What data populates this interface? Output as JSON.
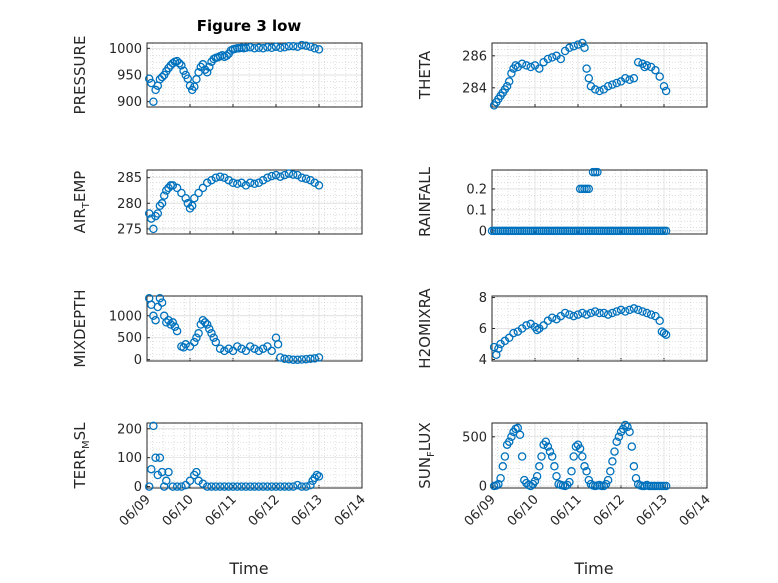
{
  "figure_title": "Figure 3 low",
  "colors": {
    "marker": "#0072BD",
    "axis": "#262626"
  },
  "chart_data": [
    {
      "type": "scatter",
      "ylabel": "PRESSURE",
      "ylim": [
        890,
        1010
      ],
      "yticks": [
        900,
        950,
        1000
      ],
      "ytick_labels": [
        "900",
        "950",
        "1000"
      ],
      "xlim": [
        0,
        5
      ],
      "xticks": [
        0,
        1,
        2,
        3,
        4,
        5
      ],
      "xtick_labels": [
        "06/09",
        "06/10",
        "06/11",
        "06/12",
        "06/13",
        "06/14"
      ],
      "grid": true,
      "minor_grid": true,
      "x": [
        0.05,
        0.1,
        0.15,
        0.2,
        0.25,
        0.3,
        0.35,
        0.4,
        0.45,
        0.5,
        0.55,
        0.6,
        0.65,
        0.7,
        0.75,
        0.8,
        0.85,
        0.9,
        0.95,
        1.0,
        1.05,
        1.1,
        1.15,
        1.2,
        1.25,
        1.3,
        1.35,
        1.4,
        1.45,
        1.5,
        1.55,
        1.6,
        1.65,
        1.7,
        1.75,
        1.8,
        1.85,
        1.9,
        1.95,
        2.0,
        2.05,
        2.1,
        2.15,
        2.2,
        2.25,
        2.3,
        2.4,
        2.5,
        2.6,
        2.7,
        2.8,
        2.9,
        3.0,
        3.1,
        3.2,
        3.3,
        3.4,
        3.5,
        3.6,
        3.7,
        3.8,
        3.9,
        4.0
      ],
      "y": [
        943,
        935,
        900,
        922,
        930,
        942,
        946,
        950,
        957,
        963,
        968,
        972,
        975,
        976,
        972,
        968,
        958,
        950,
        943,
        930,
        922,
        928,
        942,
        955,
        965,
        970,
        960,
        955,
        965,
        975,
        980,
        982,
        983,
        985,
        987,
        984,
        986,
        990,
        996,
        998,
        999,
        1000,
        1000,
        1001,
        1000,
        1001,
        1002,
        1000,
        1001,
        1000,
        1002,
        1001,
        1003,
        1001,
        1002,
        1004,
        1004,
        1003,
        1006,
        1005,
        1003,
        1000,
        998
      ]
    },
    {
      "type": "scatter",
      "ylabel": "THETA",
      "ylim": [
        282.8,
        286.8
      ],
      "yticks": [
        284,
        286
      ],
      "ytick_labels": [
        "284",
        "286"
      ],
      "xlim": [
        0,
        5
      ],
      "xticks": [
        0,
        1,
        2,
        3,
        4,
        5
      ],
      "xtick_labels": [
        "06/09",
        "06/10",
        "06/11",
        "06/12",
        "06/13",
        "06/14"
      ],
      "grid": true,
      "minor_grid": true,
      "x": [
        0.05,
        0.1,
        0.15,
        0.2,
        0.25,
        0.3,
        0.35,
        0.4,
        0.45,
        0.5,
        0.55,
        0.6,
        0.7,
        0.8,
        0.9,
        1.0,
        1.1,
        1.2,
        1.3,
        1.4,
        1.5,
        1.6,
        1.7,
        1.8,
        1.9,
        2.0,
        2.1,
        2.15,
        2.2,
        2.25,
        2.3,
        2.4,
        2.5,
        2.6,
        2.7,
        2.8,
        2.9,
        3.0,
        3.1,
        3.2,
        3.3,
        3.4,
        3.5,
        3.55,
        3.6,
        3.7,
        3.8,
        3.9,
        4.0,
        4.05
      ],
      "y": [
        282.9,
        283.1,
        283.3,
        283.5,
        283.7,
        283.9,
        284.1,
        284.4,
        284.9,
        285.2,
        285.4,
        285.3,
        285.5,
        285.4,
        285.3,
        285.4,
        285.2,
        285.6,
        285.8,
        285.9,
        286.0,
        285.8,
        286.3,
        286.5,
        286.6,
        286.7,
        286.8,
        286.5,
        285.2,
        284.6,
        284.1,
        283.9,
        283.8,
        283.9,
        284.1,
        284.2,
        284.3,
        284.4,
        284.6,
        284.5,
        284.6,
        285.6,
        285.5,
        285.3,
        285.4,
        285.3,
        285.1,
        284.7,
        284.1,
        283.8
      ]
    },
    {
      "type": "scatter",
      "ylabel": "AIR_TEMP",
      "ylim": [
        274,
        286.5
      ],
      "yticks": [
        275,
        280,
        285
      ],
      "ytick_labels": [
        "275",
        "280",
        "285"
      ],
      "xlim": [
        0,
        5
      ],
      "xticks": [
        0,
        1,
        2,
        3,
        4,
        5
      ],
      "xtick_labels": [
        "06/09",
        "06/10",
        "06/11",
        "06/12",
        "06/13",
        "06/14"
      ],
      "grid": true,
      "minor_grid": true,
      "x": [
        0.05,
        0.1,
        0.15,
        0.2,
        0.25,
        0.3,
        0.35,
        0.4,
        0.45,
        0.5,
        0.55,
        0.6,
        0.7,
        0.8,
        0.9,
        0.95,
        1.0,
        1.05,
        1.1,
        1.2,
        1.3,
        1.4,
        1.5,
        1.6,
        1.7,
        1.8,
        1.9,
        2.0,
        2.1,
        2.2,
        2.3,
        2.4,
        2.5,
        2.6,
        2.7,
        2.8,
        2.9,
        3.0,
        3.1,
        3.2,
        3.3,
        3.4,
        3.5,
        3.6,
        3.7,
        3.8,
        3.9,
        4.0
      ],
      "y": [
        278,
        277,
        275,
        277.5,
        278,
        279.5,
        280,
        281.5,
        282.5,
        283,
        283.5,
        283.5,
        283,
        282,
        281,
        280,
        279,
        279.5,
        281,
        282,
        283,
        284,
        284.5,
        285,
        285.2,
        285,
        284.5,
        284,
        283.8,
        284,
        283.5,
        284,
        283.8,
        284,
        284.5,
        285,
        285.3,
        285.5,
        285.2,
        285.5,
        285.8,
        285.6,
        285.5,
        285,
        284.8,
        284.5,
        284,
        283.5
      ]
    },
    {
      "type": "scatter",
      "ylabel": "RAINFALL",
      "ylim": [
        -0.015,
        0.29
      ],
      "yticks": [
        0,
        0.1,
        0.2
      ],
      "ytick_labels": [
        "0",
        "0.1",
        "0.2"
      ],
      "xlim": [
        0,
        5
      ],
      "xticks": [
        0,
        1,
        2,
        3,
        4,
        5
      ],
      "xtick_labels": [
        "06/09",
        "06/10",
        "06/11",
        "06/12",
        "06/13",
        "06/14"
      ],
      "grid": true,
      "minor_grid": true,
      "x": [
        0.0,
        0.05,
        0.1,
        0.15,
        0.2,
        0.25,
        0.3,
        0.35,
        0.4,
        0.45,
        0.5,
        0.55,
        0.6,
        0.65,
        0.7,
        0.75,
        0.8,
        0.85,
        0.9,
        0.95,
        1.0,
        1.05,
        1.1,
        1.15,
        1.2,
        1.25,
        1.3,
        1.35,
        1.4,
        1.45,
        1.5,
        1.55,
        1.6,
        1.65,
        1.7,
        1.75,
        1.8,
        1.85,
        1.9,
        1.95,
        2.0,
        2.05,
        2.1,
        2.15,
        2.2,
        2.25,
        2.3,
        2.35,
        2.4,
        2.45,
        2.5,
        2.55,
        2.6,
        2.65,
        2.7,
        2.75,
        2.8,
        2.85,
        2.9,
        2.95,
        3.0,
        3.05,
        3.1,
        3.15,
        3.2,
        3.25,
        3.3,
        3.35,
        3.4,
        3.45,
        3.5,
        3.55,
        3.6,
        3.65,
        3.7,
        3.75,
        3.8,
        3.85,
        3.9,
        3.95,
        4.0,
        4.05,
        2.05,
        2.1,
        2.15,
        2.2,
        2.25,
        2.35,
        2.4,
        2.45
      ],
      "y": [
        0,
        0,
        0,
        0,
        0,
        0,
        0,
        0,
        0,
        0,
        0,
        0,
        0,
        0,
        0,
        0,
        0,
        0,
        0,
        0,
        0,
        0,
        0,
        0,
        0,
        0,
        0,
        0,
        0,
        0,
        0,
        0,
        0,
        0,
        0,
        0,
        0,
        0,
        0,
        0,
        0,
        0,
        0,
        0,
        0,
        0,
        0,
        0,
        0,
        0,
        0,
        0,
        0,
        0,
        0,
        0,
        0,
        0,
        0,
        0,
        0,
        0,
        0,
        0,
        0,
        0,
        0,
        0,
        0,
        0,
        0,
        0,
        0,
        0,
        0,
        0,
        0,
        0,
        0,
        0,
        0,
        0,
        0.2,
        0.2,
        0.2,
        0.2,
        0.2,
        0.28,
        0.28,
        0.28
      ]
    },
    {
      "type": "scatter",
      "ylabel": "MIXDEPTH",
      "ylim": [
        -30,
        1450
      ],
      "yticks": [
        0,
        500,
        1000
      ],
      "ytick_labels": [
        "0",
        "500",
        "1000"
      ],
      "xlim": [
        0,
        5
      ],
      "xticks": [
        0,
        1,
        2,
        3,
        4,
        5
      ],
      "xtick_labels": [
        "06/09",
        "06/10",
        "06/11",
        "06/12",
        "06/13",
        "06/14"
      ],
      "grid": true,
      "minor_grid": true,
      "x": [
        0.05,
        0.1,
        0.15,
        0.2,
        0.25,
        0.3,
        0.35,
        0.4,
        0.45,
        0.5,
        0.55,
        0.6,
        0.65,
        0.7,
        0.8,
        0.85,
        0.9,
        1.0,
        1.1,
        1.15,
        1.2,
        1.25,
        1.3,
        1.35,
        1.4,
        1.45,
        1.5,
        1.55,
        1.6,
        1.7,
        1.8,
        1.9,
        2.0,
        2.1,
        2.2,
        2.3,
        2.4,
        2.5,
        2.6,
        2.7,
        2.8,
        2.9,
        3.0,
        3.05,
        3.1,
        3.2,
        3.3,
        3.4,
        3.5,
        3.6,
        3.7,
        3.8,
        3.9,
        4.0
      ],
      "y": [
        1400,
        1250,
        1000,
        900,
        1200,
        1400,
        1300,
        1000,
        850,
        900,
        800,
        850,
        750,
        650,
        300,
        280,
        350,
        300,
        400,
        500,
        600,
        800,
        900,
        850,
        800,
        700,
        600,
        500,
        400,
        250,
        200,
        250,
        200,
        300,
        250,
        200,
        300,
        250,
        200,
        250,
        300,
        200,
        500,
        350,
        50,
        20,
        10,
        0,
        0,
        5,
        10,
        20,
        30,
        50
      ]
    },
    {
      "type": "scatter",
      "ylabel": "H2OMIXRA",
      "ylim": [
        3.9,
        8.1
      ],
      "yticks": [
        4,
        6,
        8
      ],
      "ytick_labels": [
        "4",
        "6",
        "8"
      ],
      "xlim": [
        0,
        5
      ],
      "xticks": [
        0,
        1,
        2,
        3,
        4,
        5
      ],
      "xtick_labels": [
        "06/09",
        "06/10",
        "06/11",
        "06/12",
        "06/13",
        "06/14"
      ],
      "grid": true,
      "minor_grid": true,
      "x": [
        0.05,
        0.1,
        0.15,
        0.2,
        0.3,
        0.4,
        0.5,
        0.6,
        0.7,
        0.8,
        0.9,
        1.0,
        1.05,
        1.1,
        1.2,
        1.3,
        1.4,
        1.5,
        1.6,
        1.7,
        1.8,
        1.9,
        2.0,
        2.1,
        2.2,
        2.3,
        2.4,
        2.5,
        2.6,
        2.7,
        2.8,
        2.9,
        3.0,
        3.1,
        3.2,
        3.3,
        3.4,
        3.5,
        3.6,
        3.7,
        3.8,
        3.9,
        3.95,
        4.0,
        4.05
      ],
      "y": [
        4.8,
        4.3,
        4.7,
        5.0,
        5.2,
        5.4,
        5.7,
        5.8,
        6.0,
        6.2,
        6.3,
        6.1,
        5.9,
        6.0,
        6.2,
        6.5,
        6.7,
        6.6,
        6.8,
        7.0,
        6.9,
        6.8,
        6.9,
        7.0,
        6.9,
        7.0,
        7.1,
        7.0,
        7.0,
        6.9,
        7.0,
        7.1,
        7.2,
        7.1,
        7.2,
        7.3,
        7.2,
        7.1,
        7.0,
        6.9,
        6.8,
        6.5,
        5.8,
        5.7,
        5.6
      ]
    },
    {
      "type": "scatter",
      "ylabel": "TERR_MSL",
      "ylim": [
        -5,
        220
      ],
      "yticks": [
        0,
        100,
        200
      ],
      "ytick_labels": [
        "0",
        "100",
        "200"
      ],
      "xlim": [
        0,
        5
      ],
      "xticks": [
        0,
        1,
        2,
        3,
        4,
        5
      ],
      "xtick_labels": [
        "06/09",
        "06/10",
        "06/11",
        "06/12",
        "06/13",
        "06/14"
      ],
      "grid": true,
      "minor_grid": true,
      "x": [
        0.05,
        0.1,
        0.15,
        0.2,
        0.25,
        0.3,
        0.35,
        0.4,
        0.45,
        0.5,
        0.6,
        0.7,
        0.8,
        0.9,
        1.0,
        1.1,
        1.15,
        1.2,
        1.3,
        1.4,
        1.5,
        1.6,
        1.7,
        1.8,
        1.9,
        2.0,
        2.1,
        2.2,
        2.3,
        2.4,
        2.5,
        2.6,
        2.7,
        2.8,
        2.9,
        3.0,
        3.1,
        3.2,
        3.3,
        3.4,
        3.5,
        3.6,
        3.7,
        3.8,
        3.85,
        3.9,
        3.95,
        4.0
      ],
      "y": [
        0,
        60,
        210,
        100,
        40,
        100,
        50,
        0,
        20,
        50,
        0,
        0,
        0,
        5,
        20,
        40,
        50,
        20,
        10,
        0,
        0,
        0,
        0,
        0,
        0,
        0,
        0,
        0,
        0,
        0,
        0,
        0,
        0,
        0,
        0,
        0,
        0,
        0,
        0,
        0,
        5,
        0,
        0,
        5,
        20,
        30,
        40,
        35
      ]
    },
    {
      "type": "scatter",
      "ylabel": "SUN_FLUX",
      "ylim": [
        -20,
        640
      ],
      "yticks": [
        0,
        500
      ],
      "ytick_labels": [
        "0",
        "500"
      ],
      "xlim": [
        0,
        5
      ],
      "xticks": [
        0,
        1,
        2,
        3,
        4,
        5
      ],
      "xtick_labels": [
        "06/09",
        "06/10",
        "06/11",
        "06/12",
        "06/13",
        "06/14"
      ],
      "grid": true,
      "minor_grid": true,
      "x": [
        0.05,
        0.1,
        0.15,
        0.2,
        0.25,
        0.3,
        0.35,
        0.4,
        0.45,
        0.5,
        0.55,
        0.6,
        0.65,
        0.7,
        0.75,
        0.8,
        0.85,
        0.9,
        0.95,
        1.0,
        1.05,
        1.1,
        1.15,
        1.2,
        1.25,
        1.3,
        1.35,
        1.4,
        1.45,
        1.5,
        1.55,
        1.6,
        1.65,
        1.7,
        1.75,
        1.8,
        1.85,
        1.9,
        1.95,
        2.0,
        2.05,
        2.1,
        2.15,
        2.2,
        2.25,
        2.3,
        2.35,
        2.4,
        2.45,
        2.5,
        2.55,
        2.6,
        2.65,
        2.7,
        2.75,
        2.8,
        2.85,
        2.9,
        2.95,
        3.0,
        3.05,
        3.1,
        3.15,
        3.2,
        3.25,
        3.3,
        3.35,
        3.4,
        3.45,
        3.5,
        3.55,
        3.6,
        3.65,
        3.7,
        3.75,
        3.8,
        3.85,
        3.9,
        3.95,
        4.0,
        4.05
      ],
      "y": [
        0,
        5,
        20,
        80,
        200,
        300,
        420,
        450,
        500,
        550,
        580,
        590,
        520,
        300,
        60,
        30,
        10,
        0,
        20,
        50,
        100,
        200,
        300,
        420,
        450,
        400,
        350,
        300,
        200,
        100,
        20,
        10,
        5,
        0,
        10,
        40,
        150,
        300,
        400,
        420,
        380,
        300,
        200,
        150,
        60,
        20,
        5,
        0,
        5,
        10,
        0,
        0,
        20,
        60,
        150,
        250,
        350,
        450,
        500,
        550,
        580,
        620,
        600,
        550,
        400,
        200,
        80,
        20,
        5,
        0,
        0,
        10,
        0,
        0,
        0,
        0,
        0,
        0,
        0,
        0,
        0
      ]
    }
  ],
  "ylabel_parts": [
    {
      "base": "PRESSURE",
      "sub": "",
      "tail": ""
    },
    {
      "base": "THETA",
      "sub": "",
      "tail": ""
    },
    {
      "base": "AIR",
      "sub": "T",
      "tail": "EMP"
    },
    {
      "base": "RAINFALL",
      "sub": "",
      "tail": ""
    },
    {
      "base": "MIXDEPTH",
      "sub": "",
      "tail": ""
    },
    {
      "base": "H2OMIXRA",
      "sub": "",
      "tail": ""
    },
    {
      "base": "TERR",
      "sub": "M",
      "tail": "SL"
    },
    {
      "base": "SUN",
      "sub": "F",
      "tail": "LUX"
    }
  ],
  "xlabel": "Time"
}
